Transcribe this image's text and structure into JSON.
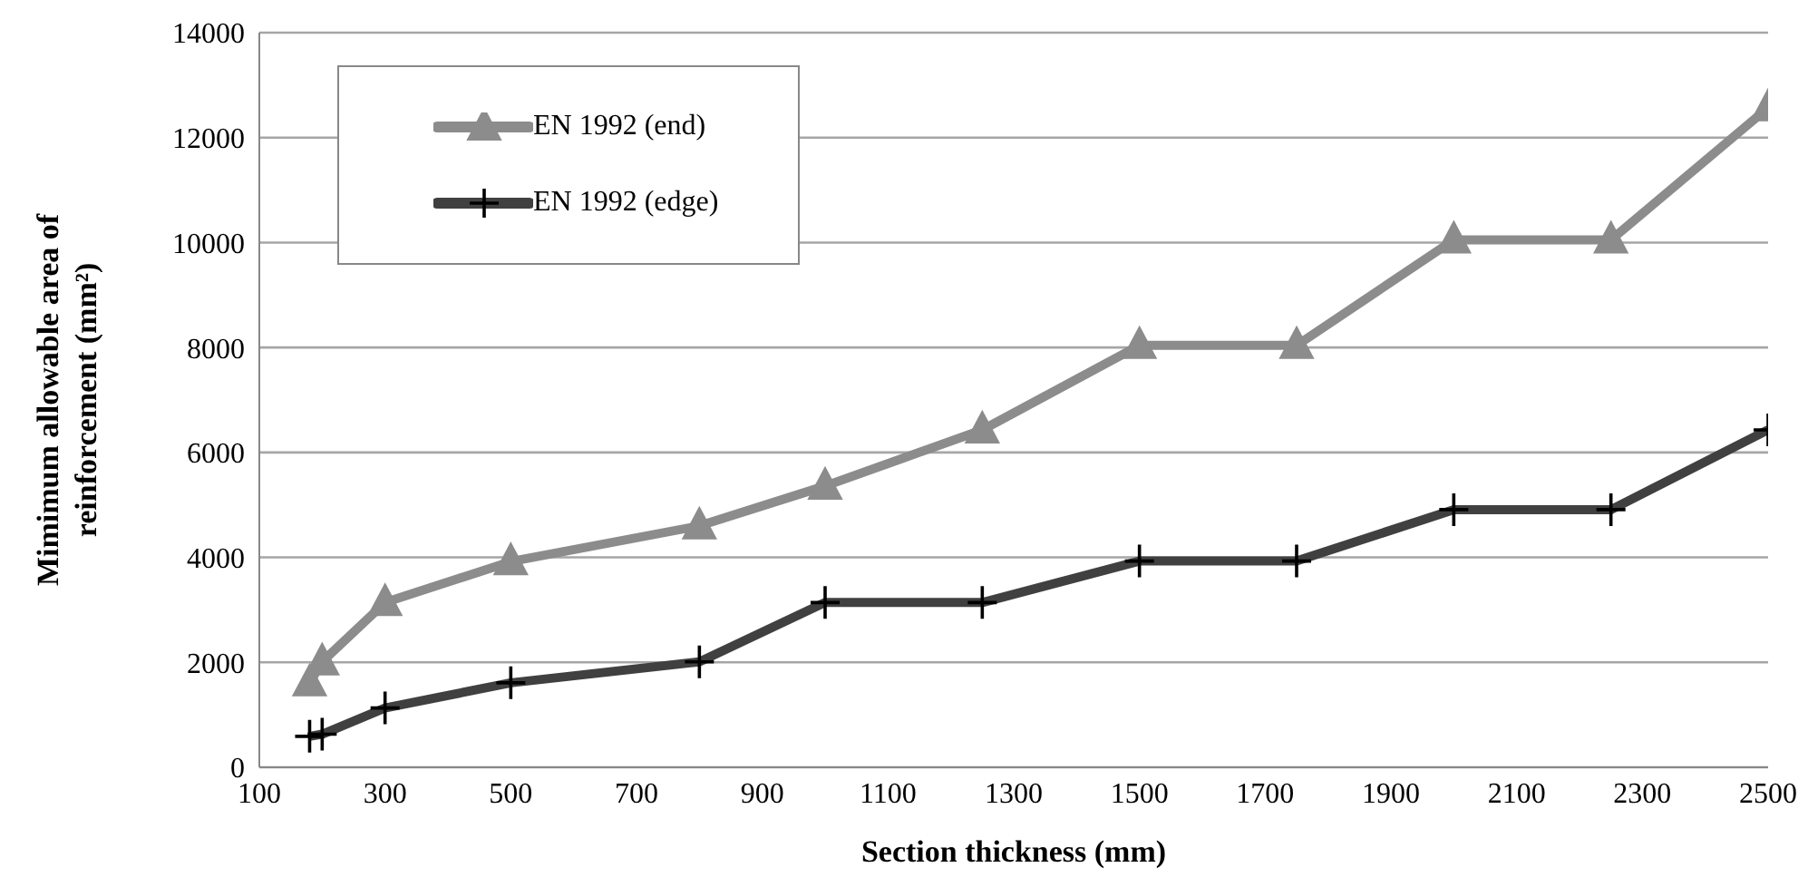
{
  "chart_data": {
    "type": "line",
    "xlabel": "Section thickness (mm)",
    "ylabel": "Mimimum allowable area of reinforcement (mm²)",
    "x": [
      180,
      200,
      300,
      500,
      800,
      1000,
      1250,
      1500,
      1750,
      2000,
      2250,
      2500
    ],
    "series": [
      {
        "name": "EN 1992 (end)",
        "color": "#8c8c8c",
        "marker": "triangle",
        "values": [
          1610,
          2010,
          3140,
          3920,
          4600,
          5360,
          6430,
          8040,
          8040,
          10050,
          10050,
          12570
        ]
      },
      {
        "name": "EN 1992 (edge)",
        "color": "#404040",
        "marker": "cross",
        "values": [
          590,
          630,
          1130,
          1610,
          2010,
          3140,
          3140,
          3930,
          3930,
          4910,
          4910,
          6430
        ]
      }
    ],
    "xlim": [
      100,
      2500
    ],
    "xticks": [
      100,
      300,
      500,
      700,
      900,
      1100,
      1300,
      1500,
      1700,
      1900,
      2100,
      2300,
      2500
    ],
    "ylim": [
      0,
      14000
    ],
    "yticks": [
      0,
      2000,
      4000,
      6000,
      8000,
      10000,
      12000,
      14000
    ],
    "grid": "y",
    "legend": "top left",
    "line_style": "solid"
  }
}
